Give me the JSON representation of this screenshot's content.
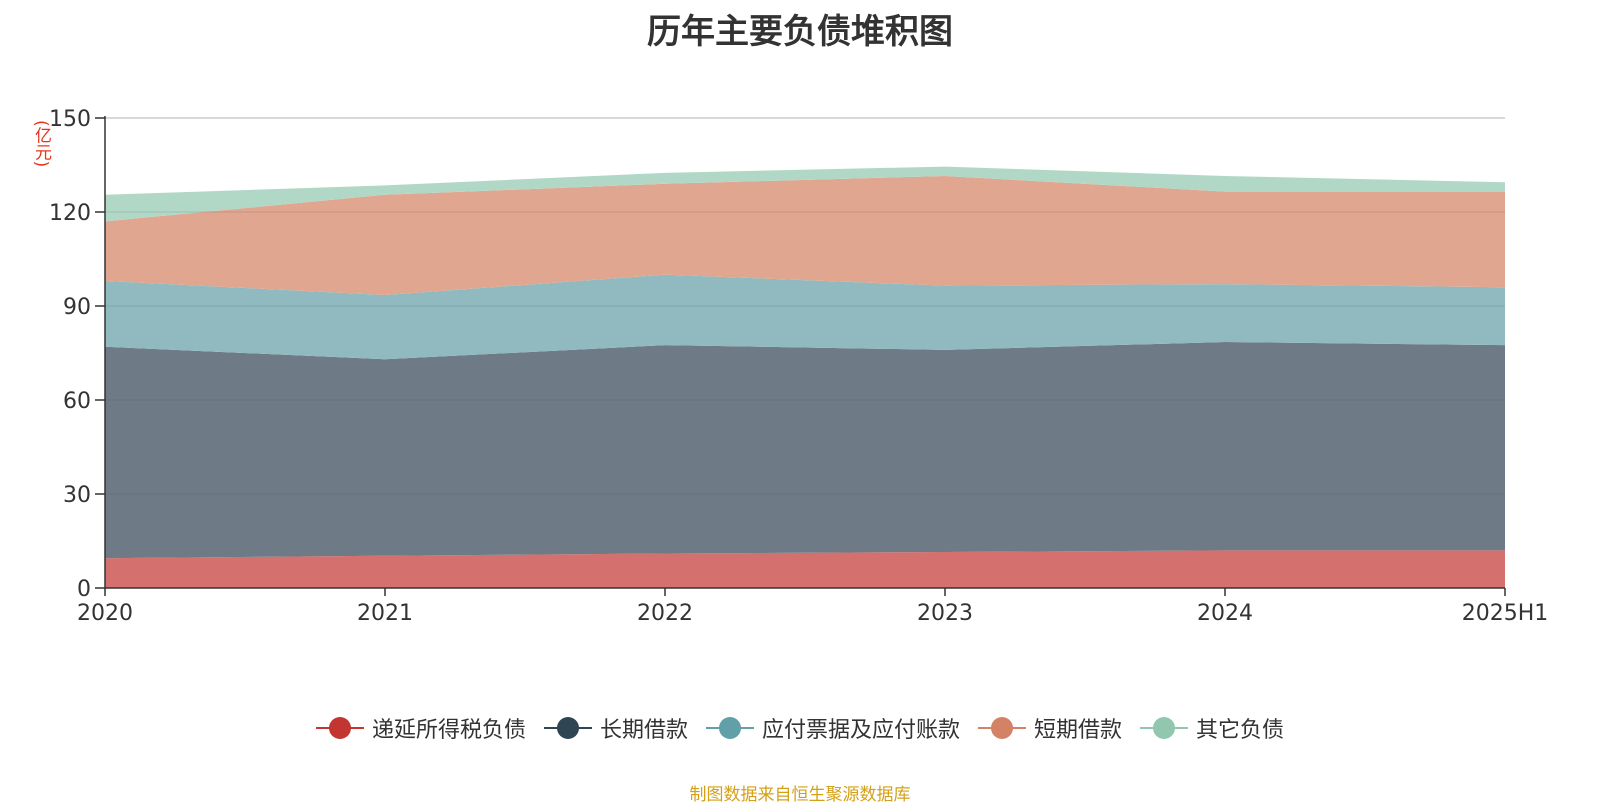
{
  "title": "历年主要负债堆积图",
  "unit_label": "(亿元)",
  "source": "制图数据来自恒生聚源数据库",
  "chart_data": {
    "type": "area",
    "stacked": true,
    "categories": [
      "2020",
      "2021",
      "2022",
      "2023",
      "2024",
      "2025H1"
    ],
    "ylim": [
      0,
      150
    ],
    "yticks": [
      "0",
      "30",
      "60",
      "90",
      "120",
      "150"
    ],
    "ylabel": "(亿元)",
    "grid": true,
    "legend_position": "bottom",
    "series": [
      {
        "name": "递延所得税负债",
        "color": "#c23531",
        "fill": "#d4706d",
        "values": [
          9.5,
          10.3,
          11.0,
          11.5,
          12.0,
          12.0
        ]
      },
      {
        "name": "长期借款",
        "color": "#2f4554",
        "fill": "#6e7b86",
        "values": [
          67.5,
          62.7,
          66.5,
          64.5,
          66.5,
          65.5
        ]
      },
      {
        "name": "应付票据及应付账款",
        "color": "#61a0a8",
        "fill": "#91bac0",
        "values": [
          21.0,
          20.5,
          22.5,
          20.5,
          18.5,
          18.5
        ]
      },
      {
        "name": "短期借款",
        "color": "#d48265",
        "fill": "#e0a68f",
        "values": [
          19.0,
          32.0,
          29.0,
          35.0,
          29.5,
          30.5
        ]
      },
      {
        "name": "其它负债",
        "color": "#91c7ae",
        "fill": "#b1d8c6",
        "values": [
          8.5,
          3.0,
          3.5,
          3.0,
          5.0,
          3.0
        ]
      }
    ]
  }
}
